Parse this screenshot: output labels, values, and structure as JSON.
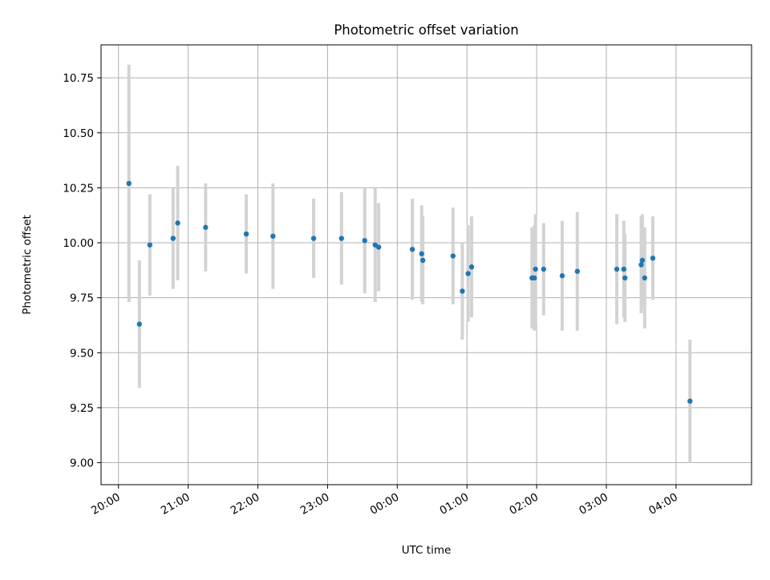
{
  "chart_data": {
    "type": "scatter",
    "title": "Photometric offset variation",
    "xlabel": "UTC time",
    "ylabel": "Photometric offset",
    "x_is_time": true,
    "x_tick_labels": [
      "20:00",
      "21:00",
      "22:00",
      "23:00",
      "00:00",
      "01:00",
      "02:00",
      "03:00",
      "04:00"
    ],
    "x_tick_values": [
      "20:00",
      "21:00",
      "22:00",
      "23:00",
      "00:00",
      "01:00",
      "02:00",
      "03:00",
      "04:00"
    ],
    "xlim": [
      "19:45",
      "05:05"
    ],
    "y_tick_labels": [
      "9.00",
      "9.25",
      "9.50",
      "9.75",
      "10.00",
      "10.25",
      "10.50",
      "10.75"
    ],
    "y_tick_values": [
      9.0,
      9.25,
      9.5,
      9.75,
      10.0,
      10.25,
      10.5,
      10.75
    ],
    "ylim": [
      8.9,
      10.9
    ],
    "grid": true,
    "point_color": "#1f77b4",
    "errorbar_color": "#d3d3d3",
    "points": [
      {
        "time": "20:09",
        "y": 10.27,
        "err": 0.54
      },
      {
        "time": "20:18",
        "y": 9.63,
        "err": 0.29
      },
      {
        "time": "20:27",
        "y": 9.99,
        "err": 0.23
      },
      {
        "time": "20:47",
        "y": 10.02,
        "err": 0.23
      },
      {
        "time": "20:51",
        "y": 10.09,
        "err": 0.26
      },
      {
        "time": "21:15",
        "y": 10.07,
        "err": 0.2
      },
      {
        "time": "21:50",
        "y": 10.04,
        "err": 0.18
      },
      {
        "time": "22:13",
        "y": 10.03,
        "err": 0.24
      },
      {
        "time": "22:48",
        "y": 10.02,
        "err": 0.18
      },
      {
        "time": "23:12",
        "y": 10.02,
        "err": 0.21
      },
      {
        "time": "23:32",
        "y": 10.01,
        "err": 0.24
      },
      {
        "time": "23:41",
        "y": 9.99,
        "err": 0.26
      },
      {
        "time": "23:44",
        "y": 9.98,
        "err": 0.2
      },
      {
        "time": "00:13",
        "y": 9.97,
        "err": 0.23
      },
      {
        "time": "00:21",
        "y": 9.95,
        "err": 0.22
      },
      {
        "time": "00:22",
        "y": 9.92,
        "err": 0.2
      },
      {
        "time": "00:48",
        "y": 9.94,
        "err": 0.22
      },
      {
        "time": "00:56",
        "y": 9.78,
        "err": 0.22
      },
      {
        "time": "01:01",
        "y": 9.86,
        "err": 0.22
      },
      {
        "time": "01:04",
        "y": 9.89,
        "err": 0.23
      },
      {
        "time": "01:56",
        "y": 9.84,
        "err": 0.23
      },
      {
        "time": "01:58",
        "y": 9.84,
        "err": 0.24
      },
      {
        "time": "01:59",
        "y": 9.88,
        "err": 0.25
      },
      {
        "time": "02:06",
        "y": 9.88,
        "err": 0.21
      },
      {
        "time": "02:22",
        "y": 9.85,
        "err": 0.25
      },
      {
        "time": "02:35",
        "y": 9.87,
        "err": 0.27
      },
      {
        "time": "03:09",
        "y": 9.88,
        "err": 0.25
      },
      {
        "time": "03:15",
        "y": 9.88,
        "err": 0.22
      },
      {
        "time": "03:16",
        "y": 9.84,
        "err": 0.2
      },
      {
        "time": "03:30",
        "y": 9.9,
        "err": 0.22
      },
      {
        "time": "03:31",
        "y": 9.92,
        "err": 0.21
      },
      {
        "time": "03:33",
        "y": 9.84,
        "err": 0.23
      },
      {
        "time": "03:40",
        "y": 9.93,
        "err": 0.19
      },
      {
        "time": "04:12",
        "y": 9.28,
        "err": 0.28
      }
    ]
  }
}
